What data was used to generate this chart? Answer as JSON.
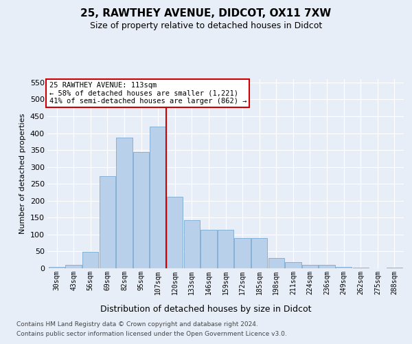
{
  "title1": "25, RAWTHEY AVENUE, DIDCOT, OX11 7XW",
  "title2": "Size of property relative to detached houses in Didcot",
  "xlabel": "Distribution of detached houses by size in Didcot",
  "ylabel": "Number of detached properties",
  "categories": [
    "30sqm",
    "43sqm",
    "56sqm",
    "69sqm",
    "82sqm",
    "95sqm",
    "107sqm",
    "120sqm",
    "133sqm",
    "146sqm",
    "159sqm",
    "172sqm",
    "185sqm",
    "198sqm",
    "211sqm",
    "224sqm",
    "236sqm",
    "249sqm",
    "262sqm",
    "275sqm",
    "288sqm"
  ],
  "values": [
    5,
    10,
    48,
    272,
    387,
    344,
    420,
    211,
    143,
    115,
    115,
    90,
    90,
    30,
    18,
    10,
    10,
    4,
    2,
    0,
    2
  ],
  "bar_color": "#b8d0ea",
  "bar_edgecolor": "#7aaad0",
  "vline_idx": 7,
  "vline_color": "#cc0000",
  "annotation_line1": "25 RAWTHEY AVENUE: 113sqm",
  "annotation_line2": "← 58% of detached houses are smaller (1,221)",
  "annotation_line3": "41% of semi-detached houses are larger (862) →",
  "ylim_max": 560,
  "yticks": [
    0,
    50,
    100,
    150,
    200,
    250,
    300,
    350,
    400,
    450,
    500,
    550
  ],
  "footer1": "Contains HM Land Registry data © Crown copyright and database right 2024.",
  "footer2": "Contains public sector information licensed under the Open Government Licence v3.0.",
  "bg_color": "#e8eef8",
  "grid_color": "#ffffff",
  "title1_fontsize": 11,
  "title2_fontsize": 9,
  "ylabel_fontsize": 8,
  "xlabel_fontsize": 9,
  "ytick_fontsize": 8,
  "xtick_fontsize": 7,
  "footer_fontsize": 6.5,
  "ann_fontsize": 7.5
}
